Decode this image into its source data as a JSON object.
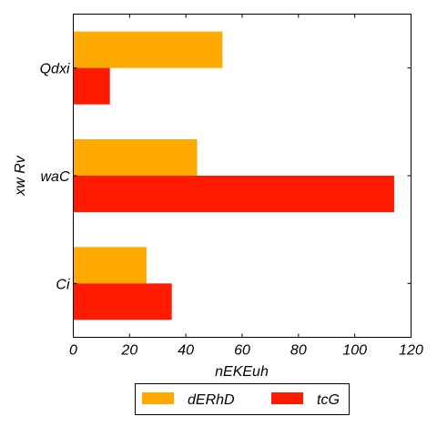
{
  "chart_data": {
    "type": "bar",
    "orientation": "horizontal",
    "categories": [
      "Ci",
      "waC",
      "Qdxi"
    ],
    "series": [
      {
        "name": "dERhD",
        "color": "#ffaa00",
        "values": [
          26,
          44,
          53
        ]
      },
      {
        "name": "tcG",
        "color": "#ff1a00",
        "values": [
          35,
          114,
          13
        ]
      }
    ],
    "xlabel": "nEKEuh",
    "ylabel": "xw Rv",
    "xlim": [
      0,
      120
    ],
    "xticks": [
      0,
      20,
      40,
      60,
      80,
      100,
      120
    ],
    "xtick_labels": [
      "0",
      "20",
      "40",
      "60",
      "80",
      "100",
      "120"
    ],
    "grid": false,
    "legend_position": "bottom-center"
  }
}
